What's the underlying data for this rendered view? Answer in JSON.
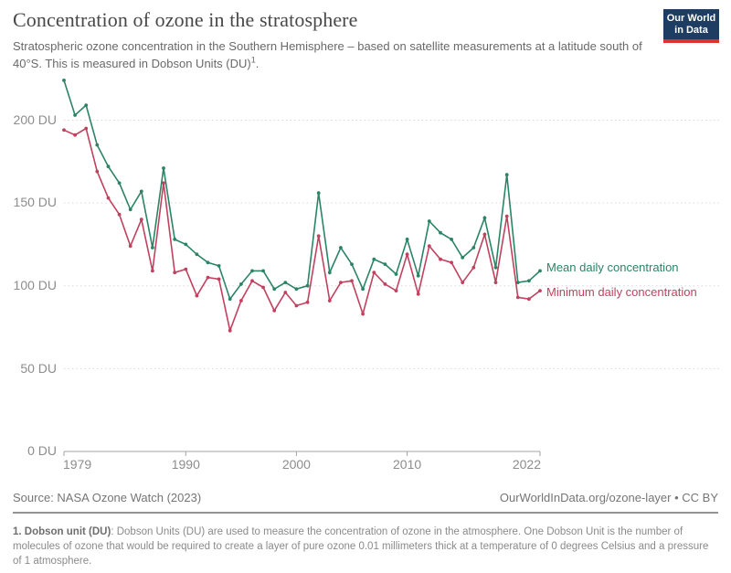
{
  "header": {
    "title": "Concentration of ozone in the stratosphere",
    "subtitle_main": "Stratospheric ozone concentration in the Southern Hemisphere – based on satellite measurements at a latitude south of 40°S. This is measured in Dobson Units (DU)",
    "subtitle_footnote_marker": "1",
    "subtitle_tail": ".",
    "logo": {
      "line1": "Our World",
      "line2": "in Data",
      "bg_color": "#1d3d63",
      "accent_color": "#dc352b"
    }
  },
  "chart_data": {
    "type": "line",
    "title": "Concentration of ozone in the stratosphere",
    "unit": "DU",
    "x": [
      1979,
      1980,
      1981,
      1982,
      1983,
      1984,
      1985,
      1986,
      1987,
      1988,
      1989,
      1990,
      1991,
      1992,
      1993,
      1994,
      1995,
      1996,
      1997,
      1998,
      1999,
      2000,
      2001,
      2002,
      2003,
      2004,
      2005,
      2006,
      2007,
      2008,
      2009,
      2010,
      2011,
      2012,
      2013,
      2014,
      2015,
      2016,
      2017,
      2018,
      2019,
      2020,
      2021,
      2022
    ],
    "series": [
      {
        "name": "Mean daily concentration",
        "color": "#2a8465",
        "values": [
          224,
          203,
          209,
          185,
          172,
          162,
          146,
          157,
          123,
          171,
          128,
          125,
          119,
          114,
          112,
          92,
          101,
          109,
          109,
          98,
          102,
          98,
          100,
          156,
          108,
          123,
          113,
          98,
          116,
          113,
          107,
          128,
          106,
          139,
          132,
          128,
          117,
          123,
          141,
          111,
          167,
          102,
          103,
          109
        ]
      },
      {
        "name": "Minimum daily concentration",
        "color": "#c1415f",
        "values": [
          194,
          191,
          195,
          169,
          153,
          143,
          124,
          140,
          109,
          162,
          108,
          110,
          94,
          105,
          104,
          73,
          91,
          103,
          99,
          85,
          96,
          88,
          90,
          130,
          91,
          102,
          103,
          83,
          108,
          101,
          97,
          119,
          95,
          124,
          116,
          114,
          102,
          111,
          131,
          102,
          142,
          93,
          92,
          97
        ]
      }
    ],
    "y_ticks": [
      0,
      50,
      100,
      150,
      200
    ],
    "y_tick_labels": [
      "0 DU",
      "50 DU",
      "100 DU",
      "150 DU",
      "200 DU"
    ],
    "x_tick_labels": [
      "1979",
      "1990",
      "2000",
      "2010",
      "2022"
    ],
    "ylim": [
      0,
      230
    ],
    "xlim": [
      1979,
      2022
    ],
    "grid": "horizontal-dotted",
    "legend_position": "right-of-last-point"
  },
  "footer": {
    "source": "Source: NASA Ozone Watch (2023)",
    "attribution": "OurWorldInData.org/ozone-layer • CC BY",
    "note_lead": "1. Dobson unit (DU)",
    "note_rest": ": Dobson Units (DU) are used to measure the concentration of ozone in the atmosphere. One Dobson Unit is the number of molecules of ozone that would be required to create a layer of pure ozone 0.01 millimeters thick at a temperature of 0 degrees Celsius and a pressure of 1 atmosphere."
  }
}
